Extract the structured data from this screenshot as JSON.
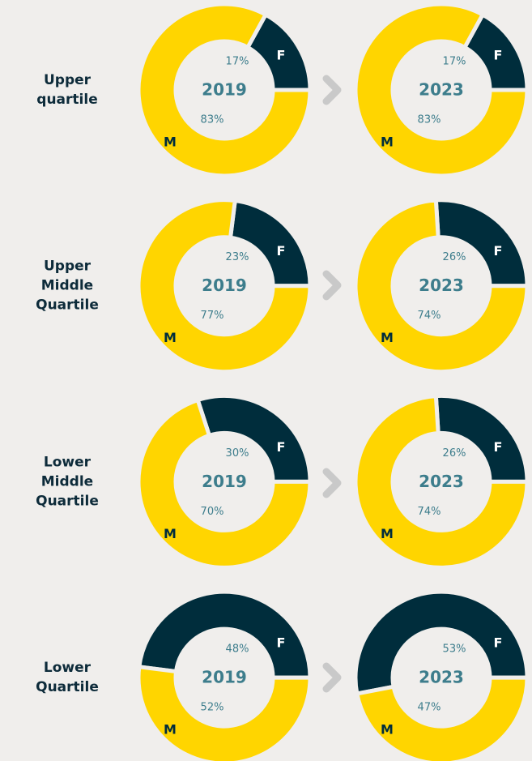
{
  "rows": [
    {
      "label": [
        "Upper",
        "quartile"
      ]
    },
    {
      "label": [
        "Upper",
        "Middle",
        "Quartile"
      ]
    },
    {
      "label": [
        "Lower",
        "Middle",
        "Quartile"
      ]
    },
    {
      "label": [
        "Lower",
        "Quartile"
      ]
    }
  ],
  "chart_data": [
    {
      "type": "pie",
      "title": "2019",
      "categories": [
        "F",
        "M"
      ],
      "values": [
        17,
        83
      ],
      "value_labels": [
        "17%",
        "83%"
      ],
      "colors": [
        "#002d3c",
        "#ffd500"
      ]
    },
    {
      "type": "pie",
      "title": "2023",
      "categories": [
        "F",
        "M"
      ],
      "values": [
        17,
        83
      ],
      "value_labels": [
        "17%",
        "83%"
      ],
      "colors": [
        "#002d3c",
        "#ffd500"
      ]
    },
    {
      "type": "pie",
      "title": "2019",
      "categories": [
        "F",
        "M"
      ],
      "values": [
        23,
        77
      ],
      "value_labels": [
        "23%",
        "77%"
      ],
      "colors": [
        "#002d3c",
        "#ffd500"
      ]
    },
    {
      "type": "pie",
      "title": "2023",
      "categories": [
        "F",
        "M"
      ],
      "values": [
        26,
        74
      ],
      "value_labels": [
        "26%",
        "74%"
      ],
      "colors": [
        "#002d3c",
        "#ffd500"
      ]
    },
    {
      "type": "pie",
      "title": "2019",
      "categories": [
        "F",
        "M"
      ],
      "values": [
        30,
        70
      ],
      "value_labels": [
        "30%",
        "70%"
      ],
      "colors": [
        "#002d3c",
        "#ffd500"
      ]
    },
    {
      "type": "pie",
      "title": "2023",
      "categories": [
        "F",
        "M"
      ],
      "values": [
        26,
        74
      ],
      "value_labels": [
        "26%",
        "74%"
      ],
      "colors": [
        "#002d3c",
        "#ffd500"
      ]
    },
    {
      "type": "pie",
      "title": "2019",
      "categories": [
        "F",
        "M"
      ],
      "values": [
        48,
        52
      ],
      "value_labels": [
        "48%",
        "52%"
      ],
      "colors": [
        "#002d3c",
        "#ffd500"
      ]
    },
    {
      "type": "pie",
      "title": "2023",
      "categories": [
        "F",
        "M"
      ],
      "values": [
        53,
        47
      ],
      "value_labels": [
        "53%",
        "47%"
      ],
      "colors": [
        "#002d3c",
        "#ffd500"
      ]
    }
  ]
}
